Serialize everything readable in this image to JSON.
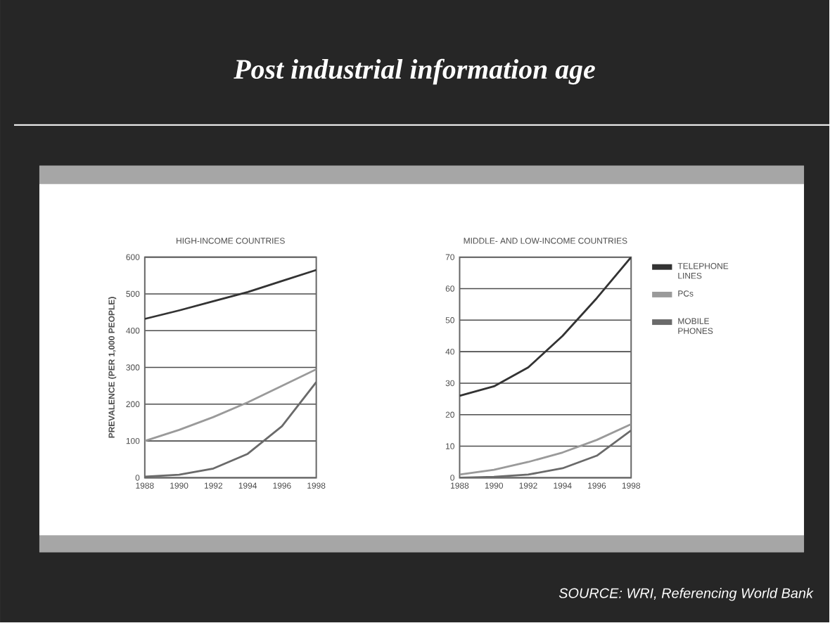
{
  "chart_data": [
    {
      "type": "line",
      "title": "Post industrial information age",
      "subtitle": "HIGH-INCOME COUNTRIES",
      "ylabel": "PREVALENCE (PER 1,000 PEOPLE)",
      "x": [
        1988,
        1990,
        1992,
        1994,
        1996,
        1998
      ],
      "xlim": [
        1988,
        1998
      ],
      "xticks": [
        1988,
        1990,
        1992,
        1994,
        1996,
        1998
      ],
      "ylim": [
        0,
        600
      ],
      "yticks": [
        0,
        100,
        200,
        300,
        400,
        500,
        600
      ],
      "grid": "y",
      "series": [
        {
          "color": "#333333",
          "values": [
            432,
            455,
            480,
            505,
            535,
            565
          ]
        },
        {
          "color": "#9a9a9a",
          "values": [
            100,
            130,
            165,
            205,
            250,
            295
          ]
        },
        {
          "color": "#6a6a6a",
          "values": [
            3,
            8,
            25,
            65,
            140,
            260
          ]
        }
      ]
    },
    {
      "type": "line",
      "title": "MIDDLE- AND LOW-INCOME COUNTRIES",
      "x": [
        1988,
        1990,
        1992,
        1994,
        1996,
        1998
      ],
      "xlim": [
        1988,
        1998
      ],
      "xticks": [
        1988,
        1990,
        1992,
        1994,
        1996,
        1998
      ],
      "ylim": [
        0,
        70
      ],
      "yticks": [
        0,
        10,
        20,
        30,
        40,
        50,
        60,
        70
      ],
      "grid": "y",
      "legend": "right",
      "annotations": [
        "SOURCE: WRI, Referencing World Bank"
      ],
      "series": [
        {
          "name": "TELEPHONE LINES",
          "color": "#333333",
          "values": [
            26,
            29,
            35,
            45,
            57,
            70
          ]
        },
        {
          "name": "PCs",
          "color": "#9a9a9a",
          "values": [
            1,
            2.5,
            5,
            8,
            12,
            17
          ]
        },
        {
          "name": "MOBILE PHONES",
          "color": "#6a6a6a",
          "values": [
            0,
            0.3,
            1,
            3,
            7,
            15
          ]
        }
      ]
    }
  ]
}
